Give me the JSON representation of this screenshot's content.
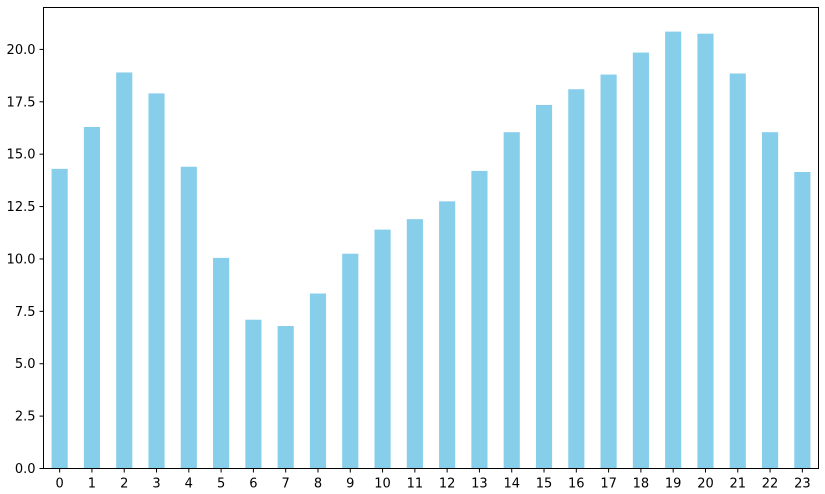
{
  "chart_data": {
    "type": "bar",
    "title": "",
    "xlabel": "",
    "ylabel": "",
    "categories": [
      "0",
      "1",
      "2",
      "3",
      "4",
      "5",
      "6",
      "7",
      "8",
      "9",
      "10",
      "11",
      "12",
      "13",
      "14",
      "15",
      "16",
      "17",
      "18",
      "19",
      "20",
      "21",
      "22",
      "23"
    ],
    "values": [
      14.3,
      16.3,
      18.9,
      17.9,
      14.4,
      10.05,
      7.1,
      6.8,
      8.35,
      10.25,
      11.4,
      11.9,
      12.75,
      14.2,
      16.05,
      17.35,
      18.1,
      18.8,
      19.85,
      20.85,
      20.75,
      18.85,
      16.05,
      14.15
    ],
    "ylim": [
      0,
      22
    ],
    "yticks": [
      "0.0",
      "2.5",
      "5.0",
      "7.5",
      "10.0",
      "12.5",
      "15.0",
      "17.5",
      "20.0"
    ],
    "bar_color": "#87CEEB",
    "grid": false,
    "legend": "none"
  }
}
